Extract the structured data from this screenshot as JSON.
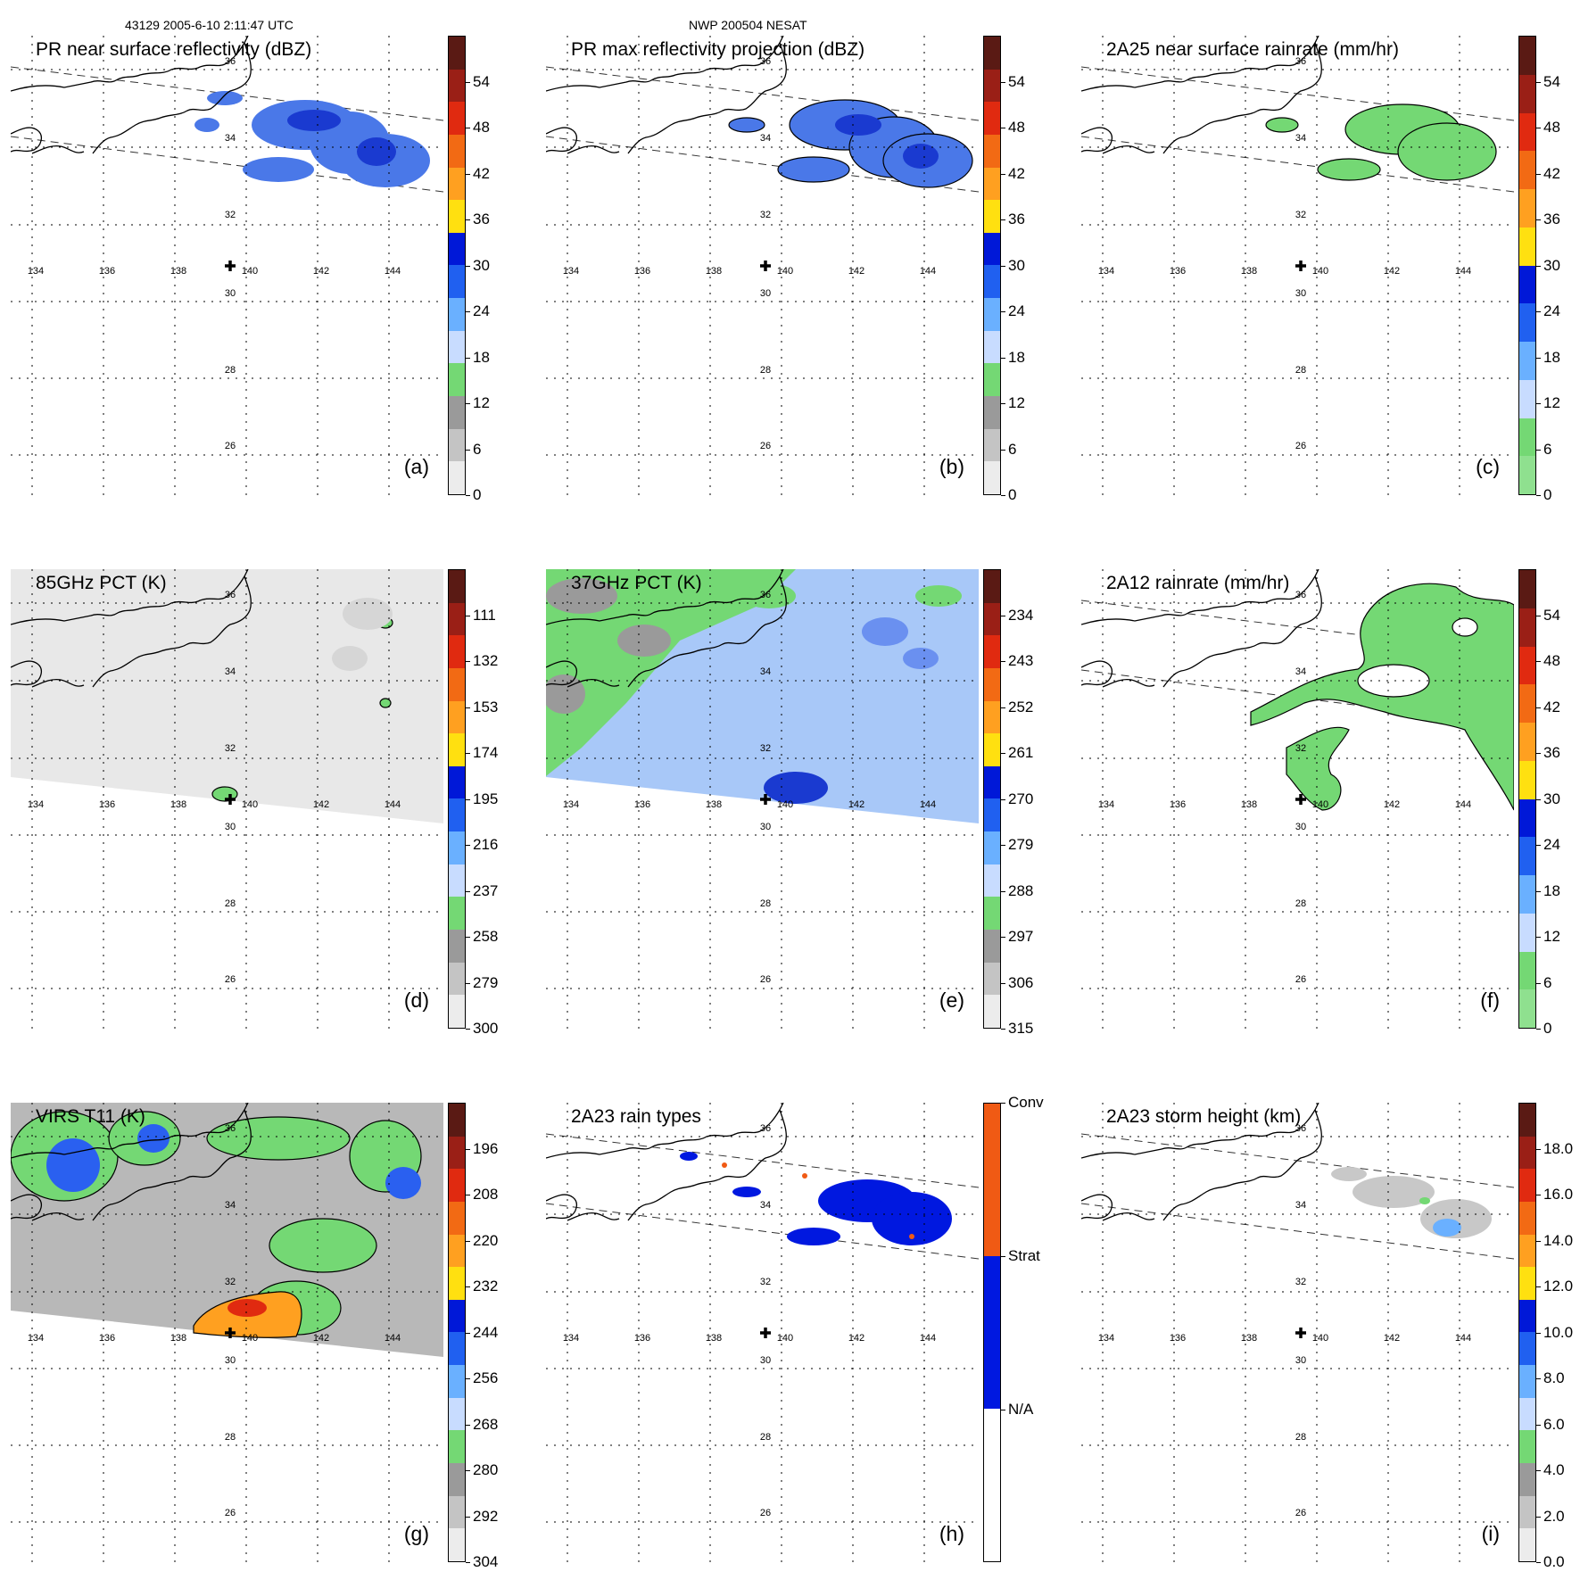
{
  "header": {
    "left": "43129 2005-6-10 2:11:47 UTC",
    "center": "NWP 200504 NESAT"
  },
  "axes": {
    "lon_labels": [
      "134",
      "136",
      "138",
      "140",
      "142",
      "144"
    ],
    "lat_labels": [
      "36",
      "34",
      "32",
      "30",
      "28",
      "26"
    ]
  },
  "panels": [
    {
      "id": "a",
      "title": "PR near surface reflectivity (dBZ)",
      "label": "(a)",
      "colorbar": {
        "ticks": [
          "54",
          "48",
          "42",
          "36",
          "30",
          "24",
          "18",
          "12",
          "6",
          "0"
        ],
        "colors": [
          "#5a1a14",
          "#9a1f16",
          "#e02a10",
          "#f26a14",
          "#ffa020",
          "#ffe010",
          "#0018d8",
          "#2060f0",
          "#6ab0ff",
          "#c8dcff",
          "#74d874",
          "#9a9a9a",
          "#c4c4c4",
          "#ececec"
        ]
      }
    },
    {
      "id": "b",
      "title": "PR max reflectivity projection (dBZ)",
      "label": "(b)",
      "colorbar": {
        "ticks": [
          "54",
          "48",
          "42",
          "36",
          "30",
          "24",
          "18",
          "12",
          "6",
          "0"
        ],
        "colors": [
          "#5a1a14",
          "#9a1f16",
          "#e02a10",
          "#f26a14",
          "#ffa020",
          "#ffe010",
          "#0018d8",
          "#2060f0",
          "#6ab0ff",
          "#c8dcff",
          "#74d874",
          "#9a9a9a",
          "#c4c4c4",
          "#ececec"
        ]
      }
    },
    {
      "id": "c",
      "title": "2A25 near surface rainrate (mm/hr)",
      "label": "(c)",
      "colorbar": {
        "ticks": [
          "54",
          "48",
          "42",
          "36",
          "30",
          "24",
          "18",
          "12",
          "6",
          "0"
        ],
        "colors": [
          "#5a1a14",
          "#9a1f16",
          "#e02a10",
          "#f26a14",
          "#ffa020",
          "#ffe010",
          "#0018d8",
          "#2060f0",
          "#6ab0ff",
          "#c8dcff",
          "#74d874",
          "#8fe08f"
        ]
      }
    },
    {
      "id": "d",
      "title": "85GHz PCT (K)",
      "label": "(d)",
      "colorbar": {
        "ticks": [
          "111",
          "132",
          "153",
          "174",
          "195",
          "216",
          "237",
          "258",
          "279",
          "300"
        ],
        "colors": [
          "#5a1a14",
          "#9a1f16",
          "#e02a10",
          "#f26a14",
          "#ffa020",
          "#ffe010",
          "#0018d8",
          "#2060f0",
          "#6ab0ff",
          "#c8dcff",
          "#74d874",
          "#9a9a9a",
          "#c4c4c4",
          "#ececec"
        ]
      }
    },
    {
      "id": "e",
      "title": "37GHz PCT (K)",
      "label": "(e)",
      "colorbar": {
        "ticks": [
          "234",
          "243",
          "252",
          "261",
          "270",
          "279",
          "288",
          "297",
          "306",
          "315"
        ],
        "colors": [
          "#5a1a14",
          "#9a1f16",
          "#e02a10",
          "#f26a14",
          "#ffa020",
          "#ffe010",
          "#0018d8",
          "#2060f0",
          "#6ab0ff",
          "#c8dcff",
          "#74d874",
          "#9a9a9a",
          "#c4c4c4",
          "#ececec"
        ]
      }
    },
    {
      "id": "f",
      "title": "2A12 rainrate (mm/hr)",
      "label": "(f)",
      "colorbar": {
        "ticks": [
          "54",
          "48",
          "42",
          "36",
          "30",
          "24",
          "18",
          "12",
          "6",
          "0"
        ],
        "colors": [
          "#5a1a14",
          "#9a1f16",
          "#e02a10",
          "#f26a14",
          "#ffa020",
          "#ffe010",
          "#0018d8",
          "#2060f0",
          "#6ab0ff",
          "#c8dcff",
          "#74d874",
          "#8fe08f"
        ]
      }
    },
    {
      "id": "g",
      "title": "VIRS T11 (K)",
      "label": "(g)",
      "colorbar": {
        "ticks": [
          "196",
          "208",
          "220",
          "232",
          "244",
          "256",
          "268",
          "280",
          "292",
          "304"
        ],
        "colors": [
          "#5a1a14",
          "#9a1f16",
          "#e02a10",
          "#f26a14",
          "#ffa020",
          "#ffe010",
          "#0018d8",
          "#2060f0",
          "#6ab0ff",
          "#c8dcff",
          "#74d874",
          "#9a9a9a",
          "#c4c4c4",
          "#ececec"
        ]
      }
    },
    {
      "id": "h",
      "title": "2A23 rain types",
      "label": "(h)",
      "colorbar": {
        "ticks": [
          "Conv",
          "Strat",
          "N/A"
        ],
        "colors": [
          "#f05a14",
          "#0018e0",
          "#ffffff"
        ]
      }
    },
    {
      "id": "i",
      "title": "2A23 storm height (km)",
      "label": "(i)",
      "colorbar": {
        "ticks": [
          "18.0",
          "16.0",
          "14.0",
          "12.0",
          "10.0",
          "8.0",
          "6.0",
          "4.0",
          "2.0",
          "0.0"
        ],
        "colors": [
          "#5a1a14",
          "#9a1f16",
          "#e02a10",
          "#f26a14",
          "#ffa020",
          "#ffe010",
          "#0018d8",
          "#2060f0",
          "#6ab0ff",
          "#c8dcff",
          "#74d874",
          "#9a9a9a",
          "#c4c4c4",
          "#ececec"
        ]
      }
    }
  ]
}
